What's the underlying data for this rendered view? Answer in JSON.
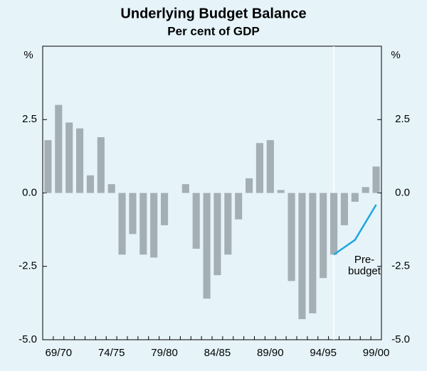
{
  "chart_data": {
    "type": "bar",
    "title": "Underlying Budget Balance",
    "subtitle": "Per cent of GDP",
    "y_label": "%",
    "y2_label": "%",
    "categories": [
      null,
      "69/70",
      null,
      null,
      null,
      null,
      "74/75",
      null,
      null,
      null,
      null,
      "79/80",
      null,
      null,
      null,
      null,
      "84/85",
      null,
      null,
      null,
      null,
      "89/90",
      null,
      null,
      null,
      null,
      "94/95",
      null,
      null,
      null,
      null,
      "99/00"
    ],
    "series": [
      {
        "type": "bar",
        "color": "#a4aeb5",
        "values": [
          1.8,
          3.0,
          2.4,
          2.2,
          0.6,
          1.9,
          0.3,
          -2.1,
          -1.4,
          -2.1,
          -2.2,
          -1.1,
          0,
          0.3,
          -1.9,
          -3.6,
          -2.8,
          -2.1,
          -0.9,
          0.5,
          1.7,
          1.8,
          0.1,
          -3.0,
          -4.3,
          -4.1,
          -2.9,
          -2.1,
          -1.1,
          -0.3,
          0.2,
          0.9
        ]
      },
      {
        "type": "line",
        "color": "#1fa6e0",
        "values": [
          null,
          null,
          null,
          null,
          null,
          null,
          null,
          null,
          null,
          null,
          null,
          null,
          null,
          null,
          null,
          null,
          null,
          null,
          null,
          null,
          null,
          null,
          null,
          null,
          null,
          null,
          null,
          -2.1,
          -1.85,
          -1.6,
          -1.0,
          -0.4
        ]
      }
    ],
    "annotation": [
      "Pre-",
      "budget"
    ],
    "ylim": [
      -5,
      5
    ],
    "yticks": [
      {
        "value": -5,
        "label": "-5.0"
      },
      -2.5,
      {
        "value": 0,
        "label": "0.0"
      },
      2.5
    ],
    "y2lim": [
      -5,
      5
    ],
    "y2ticks": [
      {
        "value": -5,
        "label": "-5.0"
      },
      -2.5,
      {
        "value": 0,
        "label": "0.0"
      },
      2.5
    ]
  }
}
